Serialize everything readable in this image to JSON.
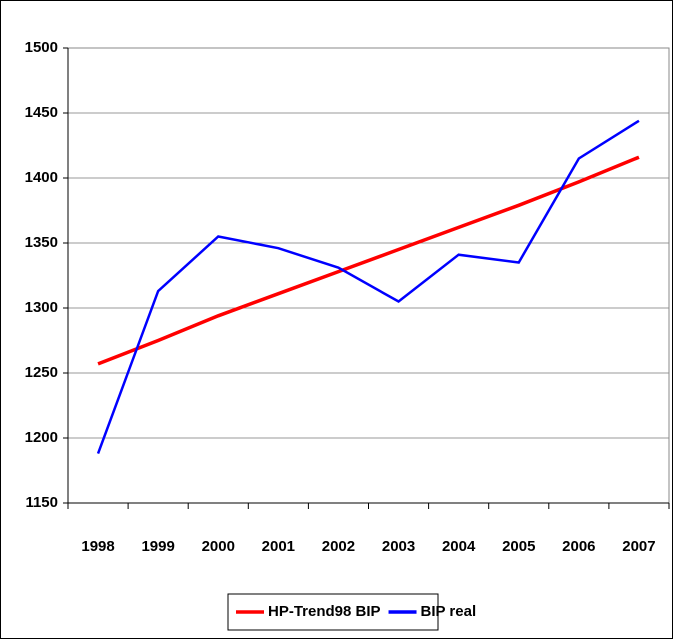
{
  "chart_data": {
    "type": "line",
    "categories": [
      "1998",
      "1999",
      "2000",
      "2001",
      "2002",
      "2003",
      "2004",
      "2005",
      "2006",
      "2007"
    ],
    "series": [
      {
        "name": "HP-Trend98 BIP",
        "color": "#ff0000",
        "values": [
          1257,
          1275,
          1294,
          1311,
          1328,
          1345,
          1362,
          1379,
          1397,
          1416
        ]
      },
      {
        "name": "BIP real",
        "color": "#0000ff",
        "values": [
          1188,
          1313,
          1355,
          1346,
          1331,
          1305,
          1341,
          1335,
          1415,
          1444
        ]
      }
    ],
    "ylim": [
      1150,
      1500
    ],
    "yticks": [
      1150,
      1200,
      1250,
      1300,
      1350,
      1400,
      1450,
      1500
    ],
    "grid": true,
    "legend": "bottom"
  }
}
